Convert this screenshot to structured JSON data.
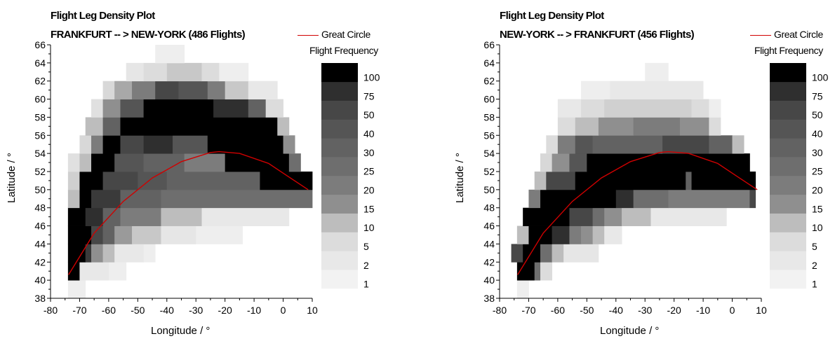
{
  "chart_data": [
    {
      "type": "heatmap",
      "title": "Flight Leg Density Plot",
      "subtitle": "FRANKFURT -- > NEW-YORK (486 Flights)",
      "xlabel": "Longitude / °",
      "ylabel": "Latitude / °",
      "xlim": [
        -80,
        10
      ],
      "ylim": [
        38,
        66
      ],
      "x_ticks": [
        "-80",
        "-70",
        "-60",
        "-50",
        "-40",
        "-30",
        "-20",
        "-10",
        "0",
        "10"
      ],
      "y_ticks": [
        "38",
        "40",
        "42",
        "44",
        "46",
        "48",
        "50",
        "52",
        "54",
        "56",
        "58",
        "60",
        "62",
        "64",
        "66"
      ],
      "legend": {
        "label": "Great Circle",
        "color": "#d00000"
      },
      "color_scale": {
        "title": "Flight Frequency",
        "labels": [
          "1",
          "2",
          "5",
          "10",
          "15",
          "20",
          "25",
          "30",
          "40",
          "50",
          "75",
          "100"
        ],
        "colors": [
          "#f2f2f2",
          "#e8e8e8",
          "#dcdcdc",
          "#bdbdbd",
          "#8f8f8f",
          "#7c7c7c",
          "#6e6e6e",
          "#626262",
          "#555555",
          "#474747",
          "#2f2f2f",
          "#000000"
        ]
      },
      "great_circle": {
        "x": [
          -73.8,
          -65,
          -55,
          -45,
          -35,
          -25,
          -22,
          -15,
          -5,
          2,
          8.6
        ],
        "y": [
          40.6,
          45.2,
          48.7,
          51.3,
          53.1,
          54.1,
          54.2,
          54.0,
          52.9,
          51.4,
          50.0
        ]
      },
      "density": [
        {
          "lat": [
            38,
            40
          ],
          "cells": [
            [
              -74,
              -68,
              "#eeeeee"
            ]
          ]
        },
        {
          "lat": [
            40,
            42
          ],
          "cells": [
            [
              -74,
              -70,
              "#000000"
            ],
            [
              -70,
              -60,
              "#e8e8e8"
            ],
            [
              -60,
              -54,
              "#eeeeee"
            ]
          ]
        },
        {
          "lat": [
            42,
            44
          ],
          "cells": [
            [
              -74,
              -68,
              "#000000"
            ],
            [
              -68,
              -66,
              "#3a3a3a"
            ],
            [
              -66,
              -62,
              "#8f8f8f"
            ],
            [
              -62,
              -58,
              "#bdbdbd"
            ],
            [
              -58,
              -48,
              "#e8e8e8"
            ],
            [
              -48,
              -44,
              "#eeeeee"
            ]
          ]
        },
        {
          "lat": [
            44,
            46
          ],
          "cells": [
            [
              -74,
              -66,
              "#000000"
            ],
            [
              -66,
              -62,
              "#474747"
            ],
            [
              -62,
              -58,
              "#626262"
            ],
            [
              -58,
              -52,
              "#9a9a9a"
            ],
            [
              -52,
              -42,
              "#c8c8c8"
            ],
            [
              -42,
              -30,
              "#e6e6e6"
            ],
            [
              -30,
              -14,
              "#eeeeee"
            ]
          ]
        },
        {
          "lat": [
            46,
            48
          ],
          "cells": [
            [
              -74,
              -68,
              "#000000"
            ],
            [
              -68,
              -62,
              "#2f2f2f"
            ],
            [
              -62,
              -56,
              "#626262"
            ],
            [
              -56,
              -42,
              "#7c7c7c"
            ],
            [
              -42,
              -28,
              "#bdbdbd"
            ],
            [
              -28,
              2,
              "#e8e8e8"
            ]
          ]
        },
        {
          "lat": [
            48,
            50
          ],
          "cells": [
            [
              -74,
              -70,
              "#bdbdbd"
            ],
            [
              -70,
              -66,
              "#000000"
            ],
            [
              -66,
              -56,
              "#3a3a3a"
            ],
            [
              -56,
              -42,
              "#626262"
            ],
            [
              -42,
              10,
              "#6e6e6e"
            ]
          ]
        },
        {
          "lat": [
            50,
            52
          ],
          "cells": [
            [
              -74,
              -70,
              "#d0d0d0"
            ],
            [
              -70,
              -62,
              "#000000"
            ],
            [
              -62,
              -50,
              "#474747"
            ],
            [
              -50,
              -40,
              "#555555"
            ],
            [
              -40,
              -8,
              "#626262"
            ],
            [
              -8,
              10,
              "#000000"
            ]
          ]
        },
        {
          "lat": [
            52,
            54
          ],
          "cells": [
            [
              -74,
              -70,
              "#e0e0e0"
            ],
            [
              -70,
              -66,
              "#bdbdbd"
            ],
            [
              -66,
              -58,
              "#000000"
            ],
            [
              -58,
              -48,
              "#555555"
            ],
            [
              -48,
              -34,
              "#626262"
            ],
            [
              -34,
              -20,
              "#7c7c7c"
            ],
            [
              -20,
              2,
              "#000000"
            ],
            [
              2,
              6,
              "#6e6e6e"
            ]
          ]
        },
        {
          "lat": [
            54,
            56
          ],
          "cells": [
            [
              -70,
              -66,
              "#d8d8d8"
            ],
            [
              -66,
              -62,
              "#7c7c7c"
            ],
            [
              -62,
              -56,
              "#000000"
            ],
            [
              -56,
              -48,
              "#474747"
            ],
            [
              -48,
              -38,
              "#2f2f2f"
            ],
            [
              -38,
              -26,
              "#555555"
            ],
            [
              -26,
              0,
              "#000000"
            ],
            [
              0,
              4,
              "#8f8f8f"
            ]
          ]
        },
        {
          "lat": [
            56,
            58
          ],
          "cells": [
            [
              -68,
              -62,
              "#bdbdbd"
            ],
            [
              -62,
              -56,
              "#626262"
            ],
            [
              -56,
              -12,
              "#000000"
            ],
            [
              -12,
              -2,
              "#000000"
            ],
            [
              -2,
              2,
              "#bdbdbd"
            ]
          ]
        },
        {
          "lat": [
            58,
            60
          ],
          "cells": [
            [
              -66,
              -62,
              "#e0e0e0"
            ],
            [
              -62,
              -56,
              "#8f8f8f"
            ],
            [
              -56,
              -48,
              "#555555"
            ],
            [
              -48,
              -24,
              "#000000"
            ],
            [
              -24,
              -12,
              "#2f2f2f"
            ],
            [
              -12,
              -6,
              "#626262"
            ],
            [
              -6,
              0,
              "#dcdcdc"
            ]
          ]
        },
        {
          "lat": [
            60,
            62
          ],
          "cells": [
            [
              -62,
              -58,
              "#d8d8d8"
            ],
            [
              -58,
              -52,
              "#a8a8a8"
            ],
            [
              -52,
              -44,
              "#7c7c7c"
            ],
            [
              -44,
              -36,
              "#474747"
            ],
            [
              -36,
              -26,
              "#555555"
            ],
            [
              -26,
              -20,
              "#7c7c7c"
            ],
            [
              -20,
              -12,
              "#c8c8c8"
            ],
            [
              -12,
              -2,
              "#e8e8e8"
            ]
          ]
        },
        {
          "lat": [
            62,
            64
          ],
          "cells": [
            [
              -54,
              -48,
              "#e6e6e6"
            ],
            [
              -48,
              -40,
              "#dcdcdc"
            ],
            [
              -40,
              -28,
              "#c8c8c8"
            ],
            [
              -28,
              -22,
              "#dcdcdc"
            ],
            [
              -22,
              -12,
              "#eeeeee"
            ]
          ]
        },
        {
          "lat": [
            64,
            66
          ],
          "cells": [
            [
              -44,
              -34,
              "#eeeeee"
            ]
          ]
        }
      ]
    },
    {
      "type": "heatmap",
      "title": "Flight Leg Density Plot",
      "subtitle": "NEW-YORK -- > FRANKFURT (456 Flights)",
      "xlabel": "Longitude / °",
      "ylabel": "Latitude / °",
      "xlim": [
        -80,
        10
      ],
      "ylim": [
        38,
        66
      ],
      "x_ticks": [
        "-80",
        "-70",
        "-60",
        "-50",
        "-40",
        "-30",
        "-20",
        "-10",
        "0",
        "10"
      ],
      "y_ticks": [
        "38",
        "40",
        "42",
        "44",
        "46",
        "48",
        "50",
        "52",
        "54",
        "56",
        "58",
        "60",
        "62",
        "64",
        "66"
      ],
      "legend": {
        "label": "Great Circle",
        "color": "#d00000"
      },
      "color_scale": {
        "title": "Flight Frequency",
        "labels": [
          "1",
          "2",
          "5",
          "10",
          "15",
          "20",
          "25",
          "30",
          "40",
          "50",
          "75",
          "100"
        ],
        "colors": [
          "#f2f2f2",
          "#e8e8e8",
          "#dcdcdc",
          "#bdbdbd",
          "#8f8f8f",
          "#7c7c7c",
          "#6e6e6e",
          "#626262",
          "#555555",
          "#474747",
          "#2f2f2f",
          "#000000"
        ]
      },
      "great_circle": {
        "x": [
          -73.8,
          -65,
          -55,
          -45,
          -35,
          -25,
          -22,
          -15,
          -5,
          2,
          8.6
        ],
        "y": [
          40.6,
          45.2,
          48.7,
          51.3,
          53.1,
          54.1,
          54.2,
          54.0,
          52.9,
          51.4,
          50.0
        ]
      },
      "density": [
        {
          "lat": [
            38,
            40
          ],
          "cells": [
            [
              -74,
              -70,
              "#eeeeee"
            ]
          ]
        },
        {
          "lat": [
            40,
            42
          ],
          "cells": [
            [
              -74,
              -68,
              "#000000"
            ],
            [
              -68,
              -66,
              "#6e6e6e"
            ],
            [
              -66,
              -62,
              "#dcdcdc"
            ]
          ]
        },
        {
          "lat": [
            42,
            44
          ],
          "cells": [
            [
              -76,
              -72,
              "#474747"
            ],
            [
              -72,
              -66,
              "#000000"
            ],
            [
              -66,
              -62,
              "#6e6e6e"
            ],
            [
              -62,
              -58,
              "#bdbdbd"
            ],
            [
              -58,
              -46,
              "#e6e6e6"
            ]
          ]
        },
        {
          "lat": [
            44,
            46
          ],
          "cells": [
            [
              -74,
              -70,
              "#bdbdbd"
            ],
            [
              -70,
              -62,
              "#000000"
            ],
            [
              -62,
              -56,
              "#2f2f2f"
            ],
            [
              -56,
              -52,
              "#7c7c7c"
            ],
            [
              -52,
              -48,
              "#8f8f8f"
            ],
            [
              -48,
              -44,
              "#bdbdbd"
            ],
            [
              -44,
              -38,
              "#e8e8e8"
            ]
          ]
        },
        {
          "lat": [
            46,
            48
          ],
          "cells": [
            [
              -72,
              -66,
              "#000000"
            ],
            [
              -66,
              -56,
              "#000000"
            ],
            [
              -56,
              -48,
              "#474747"
            ],
            [
              -48,
              -44,
              "#6e6e6e"
            ],
            [
              -44,
              -38,
              "#8f8f8f"
            ],
            [
              -38,
              -28,
              "#bdbdbd"
            ],
            [
              -28,
              -2,
              "#e8e8e8"
            ]
          ]
        },
        {
          "lat": [
            48,
            50
          ],
          "cells": [
            [
              -70,
              -66,
              "#7c7c7c"
            ],
            [
              -66,
              -40,
              "#000000"
            ],
            [
              -40,
              -34,
              "#2f2f2f"
            ],
            [
              -34,
              -22,
              "#6e6e6e"
            ],
            [
              -22,
              6,
              "#7c7c7c"
            ],
            [
              6,
              8,
              "#474747"
            ]
          ]
        },
        {
          "lat": [
            50,
            52
          ],
          "cells": [
            [
              -68,
              -64,
              "#bdbdbd"
            ],
            [
              -64,
              -54,
              "#474747"
            ],
            [
              -54,
              -16,
              "#000000"
            ],
            [
              -16,
              -14,
              "#626262"
            ],
            [
              -14,
              8,
              "#000000"
            ]
          ]
        },
        {
          "lat": [
            52,
            54
          ],
          "cells": [
            [
              -66,
              -62,
              "#d8d8d8"
            ],
            [
              -62,
              -56,
              "#8f8f8f"
            ],
            [
              -56,
              -50,
              "#555555"
            ],
            [
              -50,
              6,
              "#000000"
            ]
          ]
        },
        {
          "lat": [
            54,
            56
          ],
          "cells": [
            [
              -64,
              -60,
              "#dcdcdc"
            ],
            [
              -60,
              -54,
              "#7c7c7c"
            ],
            [
              -54,
              -48,
              "#555555"
            ],
            [
              -48,
              -24,
              "#626262"
            ],
            [
              -24,
              -8,
              "#474747"
            ],
            [
              -8,
              0,
              "#626262"
            ],
            [
              0,
              4,
              "#bdbdbd"
            ]
          ]
        },
        {
          "lat": [
            56,
            58
          ],
          "cells": [
            [
              -60,
              -54,
              "#dcdcdc"
            ],
            [
              -54,
              -46,
              "#bdbdbd"
            ],
            [
              -46,
              -34,
              "#8f8f8f"
            ],
            [
              -34,
              -18,
              "#7c7c7c"
            ],
            [
              -18,
              -8,
              "#8f8f8f"
            ],
            [
              -8,
              -4,
              "#dcdcdc"
            ]
          ]
        },
        {
          "lat": [
            58,
            60
          ],
          "cells": [
            [
              -60,
              -52,
              "#e8e8e8"
            ],
            [
              -52,
              -44,
              "#dcdcdc"
            ],
            [
              -44,
              -14,
              "#d0d0d0"
            ],
            [
              -14,
              -8,
              "#dcdcdc"
            ],
            [
              -8,
              -4,
              "#eeeeee"
            ]
          ]
        },
        {
          "lat": [
            60,
            62
          ],
          "cells": [
            [
              -52,
              -42,
              "#eeeeee"
            ],
            [
              -42,
              -10,
              "#e8e8e8"
            ]
          ]
        },
        {
          "lat": [
            62,
            64
          ],
          "cells": [
            [
              -30,
              -22,
              "#eeeeee"
            ]
          ]
        }
      ]
    }
  ]
}
